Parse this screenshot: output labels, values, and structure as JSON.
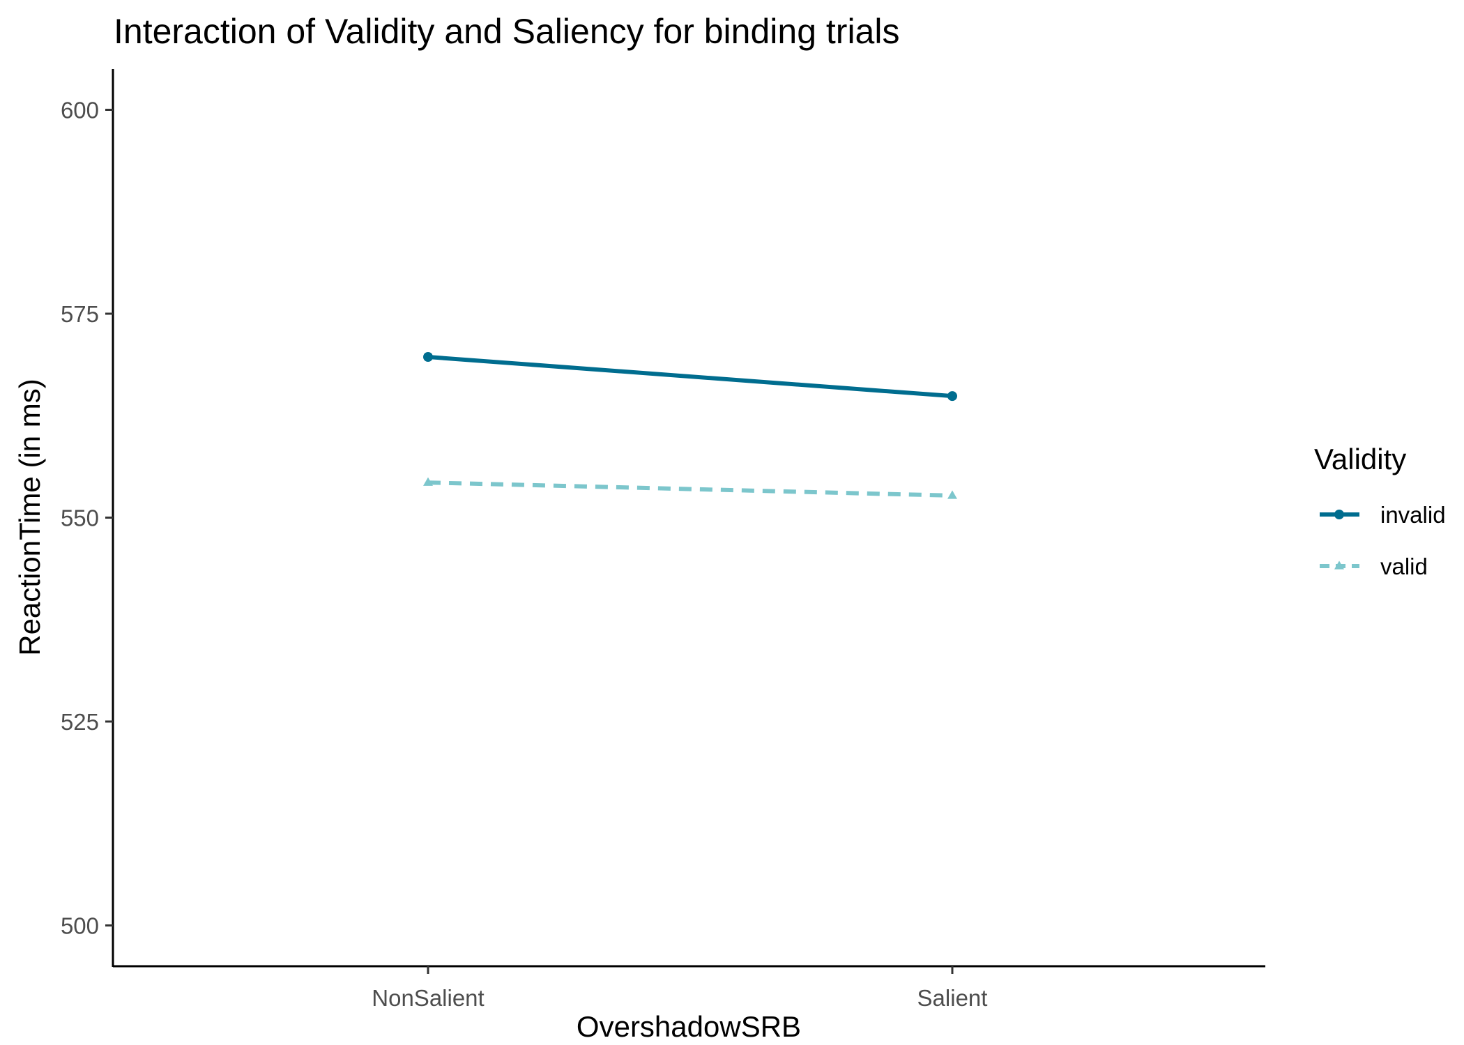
{
  "chart_data": {
    "type": "line",
    "title": "Interaction of Validity and Saliency for binding trials",
    "xlabel": "OvershadowSRB",
    "ylabel": "ReactionTime (in ms)",
    "categories": [
      "NonSalient",
      "Salient"
    ],
    "ylim": [
      495,
      605
    ],
    "yticks": [
      500,
      525,
      550,
      575,
      600
    ],
    "grid": false,
    "legend": {
      "title": "Validity",
      "position": "right"
    },
    "series": [
      {
        "name": "invalid",
        "values": [
          569.7,
          564.9
        ],
        "color": "#006d8f",
        "line_style": "solid",
        "marker": "circle"
      },
      {
        "name": "valid",
        "values": [
          554.3,
          552.7
        ],
        "color": "#7cc6cc",
        "line_style": "dashed",
        "marker": "triangle"
      }
    ]
  }
}
